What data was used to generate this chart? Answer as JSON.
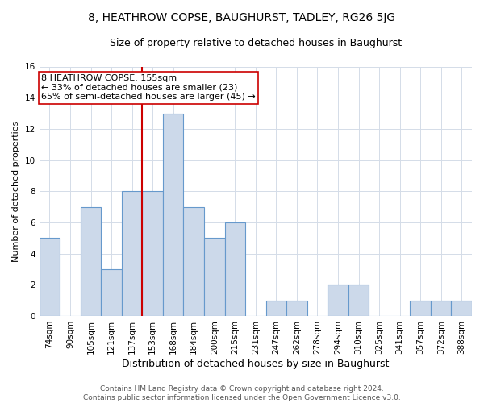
{
  "title": "8, HEATHROW COPSE, BAUGHURST, TADLEY, RG26 5JG",
  "subtitle": "Size of property relative to detached houses in Baughurst",
  "xlabel": "Distribution of detached houses by size in Baughurst",
  "ylabel": "Number of detached properties",
  "categories": [
    "74sqm",
    "90sqm",
    "105sqm",
    "121sqm",
    "137sqm",
    "153sqm",
    "168sqm",
    "184sqm",
    "200sqm",
    "215sqm",
    "231sqm",
    "247sqm",
    "262sqm",
    "278sqm",
    "294sqm",
    "310sqm",
    "325sqm",
    "341sqm",
    "357sqm",
    "372sqm",
    "388sqm"
  ],
  "values": [
    5,
    0,
    7,
    3,
    8,
    8,
    13,
    7,
    5,
    6,
    0,
    1,
    1,
    0,
    2,
    2,
    0,
    0,
    1,
    1,
    1
  ],
  "bar_color": "#ccd9ea",
  "bar_edge_color": "#6699cc",
  "vline_x_index": 5,
  "vline_color": "#cc0000",
  "annotation_line1": "8 HEATHROW COPSE: 155sqm",
  "annotation_line2": "← 33% of detached houses are smaller (23)",
  "annotation_line3": "65% of semi-detached houses are larger (45) →",
  "annotation_box_color": "white",
  "annotation_box_edge_color": "#cc0000",
  "ylim": [
    0,
    16
  ],
  "yticks": [
    0,
    2,
    4,
    6,
    8,
    10,
    12,
    14,
    16
  ],
  "grid_color": "#d4dce8",
  "background_color": "white",
  "footer_text": "Contains HM Land Registry data © Crown copyright and database right 2024.\nContains public sector information licensed under the Open Government Licence v3.0.",
  "title_fontsize": 10,
  "subtitle_fontsize": 9,
  "xlabel_fontsize": 9,
  "ylabel_fontsize": 8,
  "tick_fontsize": 7.5,
  "annotation_fontsize": 8,
  "footer_fontsize": 6.5
}
